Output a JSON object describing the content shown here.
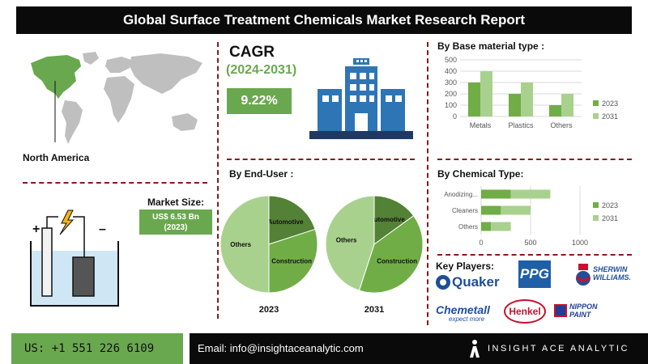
{
  "header": {
    "title": "Global Surface Treatment Chemicals Market Research Report"
  },
  "region": {
    "label": "North America"
  },
  "cagr": {
    "title": "CAGR",
    "period": "(2024-2031)",
    "value": "9.22%"
  },
  "market_size": {
    "title": "Market Size:",
    "line1": "US$ 6.53 Bn",
    "line2": "(2023)"
  },
  "sections": {
    "base_material": "By Base material type :",
    "end_user": "By End-User :",
    "chemical_type": "By Chemical Type:"
  },
  "key_players": {
    "label": "Key Players:",
    "names": [
      "Quaker",
      "PPG",
      "SHERWIN WILLIAMS.",
      "Chemetall",
      "expect more",
      "Henkel",
      "NIPPON PAINT"
    ]
  },
  "footer": {
    "phone": "US: +1 551 226 6109",
    "email": "Email: info@insightaceanalytic.com",
    "brand": "INSIGHT ACE ANALYTIC"
  },
  "colors": {
    "dark_green": "#6aa84f",
    "light_green": "#a9d18e",
    "pie_dark": "#538135",
    "pie_mid": "#70ad47",
    "pie_light": "#a9d18e",
    "header_bg": "#0a0a0a",
    "building_blue": "#2e75b6"
  },
  "icons": [
    "world-map-icon",
    "building-icon",
    "electrolysis-cell-icon",
    "insight-ace-logo-icon"
  ],
  "chart_data": [
    {
      "type": "bar",
      "title": "By Base material type :",
      "categories": [
        "Metals",
        "Plastics",
        "Others"
      ],
      "series": [
        {
          "name": "2023",
          "values": [
            300,
            200,
            100
          ]
        },
        {
          "name": "2031",
          "values": [
            400,
            300,
            200
          ]
        }
      ],
      "yticks": [
        "0",
        "100",
        "200",
        "300",
        "400",
        "500"
      ],
      "ylim": [
        0,
        500
      ],
      "legend": "right"
    },
    {
      "type": "pie",
      "title": "By End-User :",
      "caption": "2023",
      "labels": [
        "Automotive",
        "Construction",
        "Others"
      ],
      "values": [
        20,
        30,
        50
      ]
    },
    {
      "type": "pie",
      "title": "By End-User :",
      "caption": "2031",
      "labels": [
        "Automotive",
        "Construction",
        "Others"
      ],
      "values": [
        15,
        40,
        45
      ]
    },
    {
      "type": "bar",
      "orientation": "horizontal",
      "title": "By Chemical Type:",
      "categories": [
        "Anodizing...",
        "Cleaners",
        "Others"
      ],
      "series": [
        {
          "name": "2023",
          "values": [
            300,
            200,
            100
          ]
        },
        {
          "name": "2031",
          "values": [
            400,
            300,
            200
          ]
        }
      ],
      "xticks": [
        "0",
        "500",
        "1000"
      ],
      "xlim": [
        0,
        1000
      ],
      "legend": "right"
    }
  ]
}
